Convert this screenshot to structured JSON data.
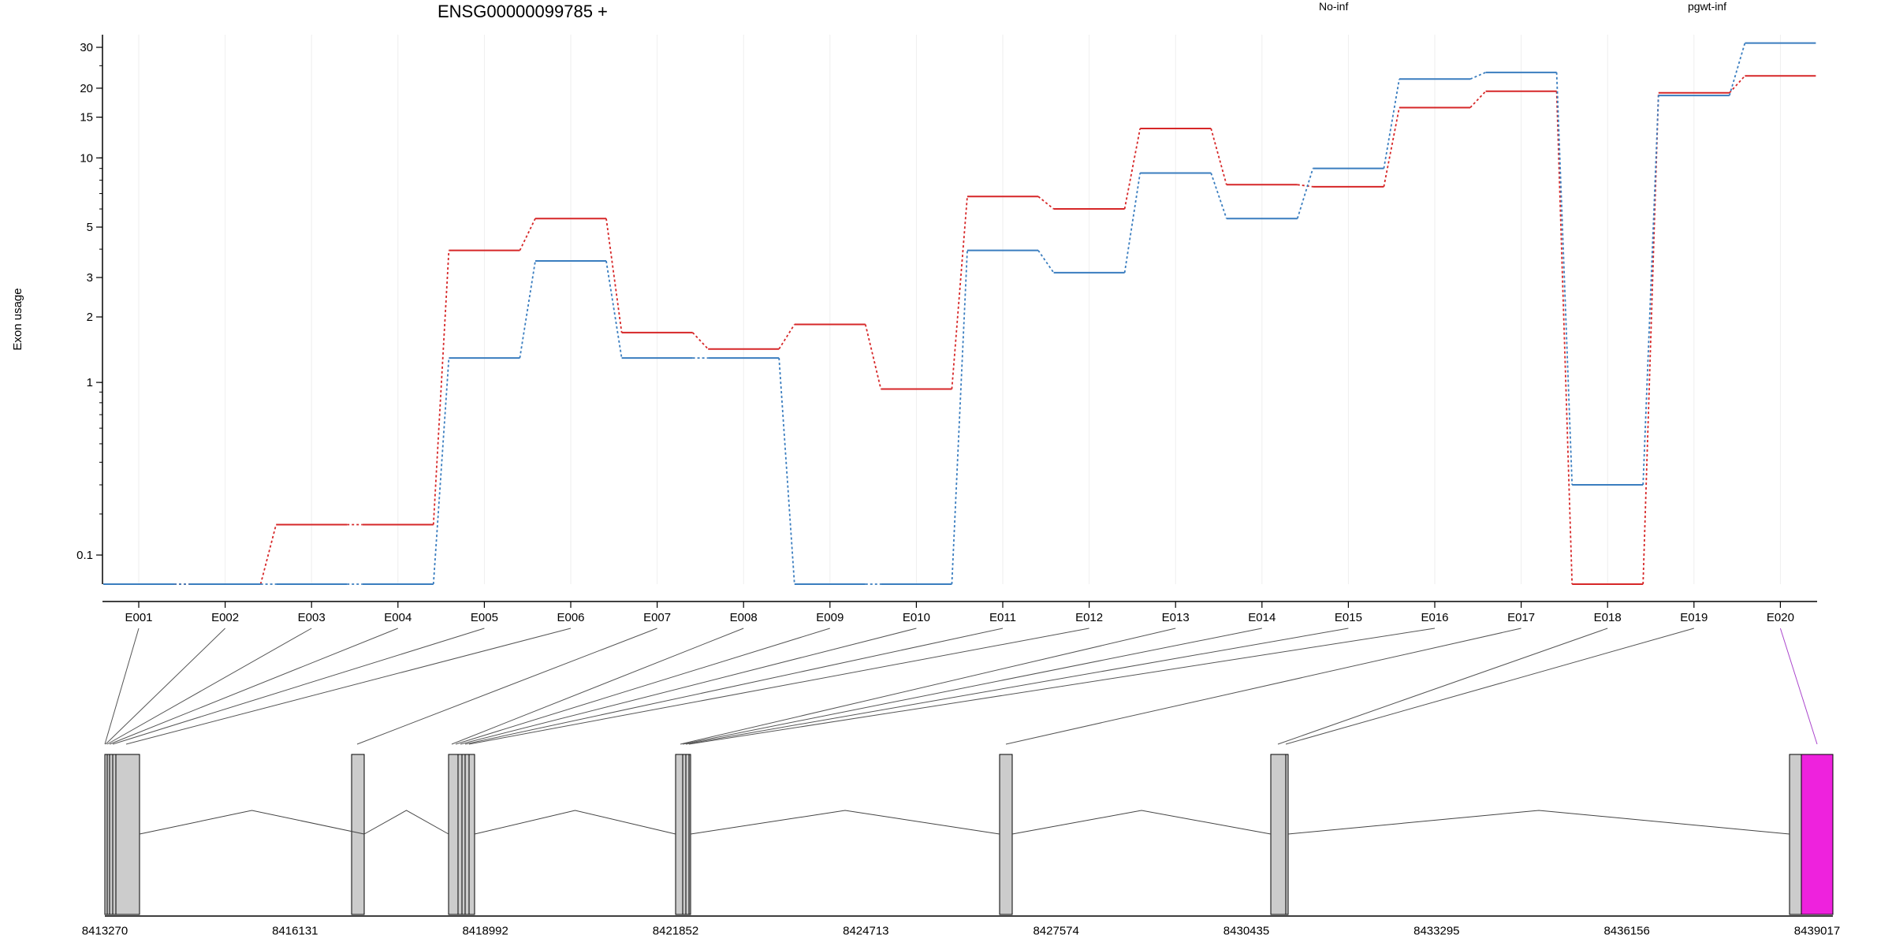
{
  "title": "ENSG00000099785 +",
  "chart_data": {
    "type": "line",
    "title": "ENSG00000099785 +",
    "ylabel": "Exon usage",
    "xlabel": "",
    "y_scale": "log(y+0.1)",
    "yticks": [
      0.1,
      1,
      2,
      3,
      5,
      10,
      15,
      20,
      30
    ],
    "grid": "vertical at exons",
    "legend": "top-right",
    "categories": [
      "E001",
      "E002",
      "E003",
      "E004",
      "E005",
      "E006",
      "E007",
      "E008",
      "E009",
      "E010",
      "E011",
      "E012",
      "E013",
      "E014",
      "E015",
      "E016",
      "E017",
      "E018",
      "E019",
      "E020"
    ],
    "series": [
      {
        "name": "No-inf",
        "color": "#d62728",
        "values": [
          0.05,
          0.05,
          0.17,
          0.17,
          3.95,
          5.45,
          1.7,
          1.43,
          1.85,
          0.93,
          6.8,
          6.0,
          13.4,
          7.65,
          7.5,
          16.5,
          19.4,
          0.05,
          19.1,
          22.6
        ]
      },
      {
        "name": "pgwt-inf",
        "color": "#3a7dbf",
        "values": [
          0.05,
          0.05,
          0.05,
          0.05,
          1.3,
          3.55,
          1.3,
          1.3,
          0.05,
          0.05,
          3.95,
          3.15,
          8.6,
          5.45,
          9.0,
          21.9,
          23.4,
          0.3,
          18.6,
          31.3
        ]
      }
    ]
  },
  "gene_model": {
    "genomic_ticks": [
      "8413270",
      "8416131",
      "8418992",
      "8421852",
      "8424713",
      "8427574",
      "8430435",
      "8433295",
      "8436156",
      "8439017"
    ],
    "exon_fill": "#cccccc",
    "highlight_fill": "#ee22dd",
    "highlight_exon": "E020"
  }
}
